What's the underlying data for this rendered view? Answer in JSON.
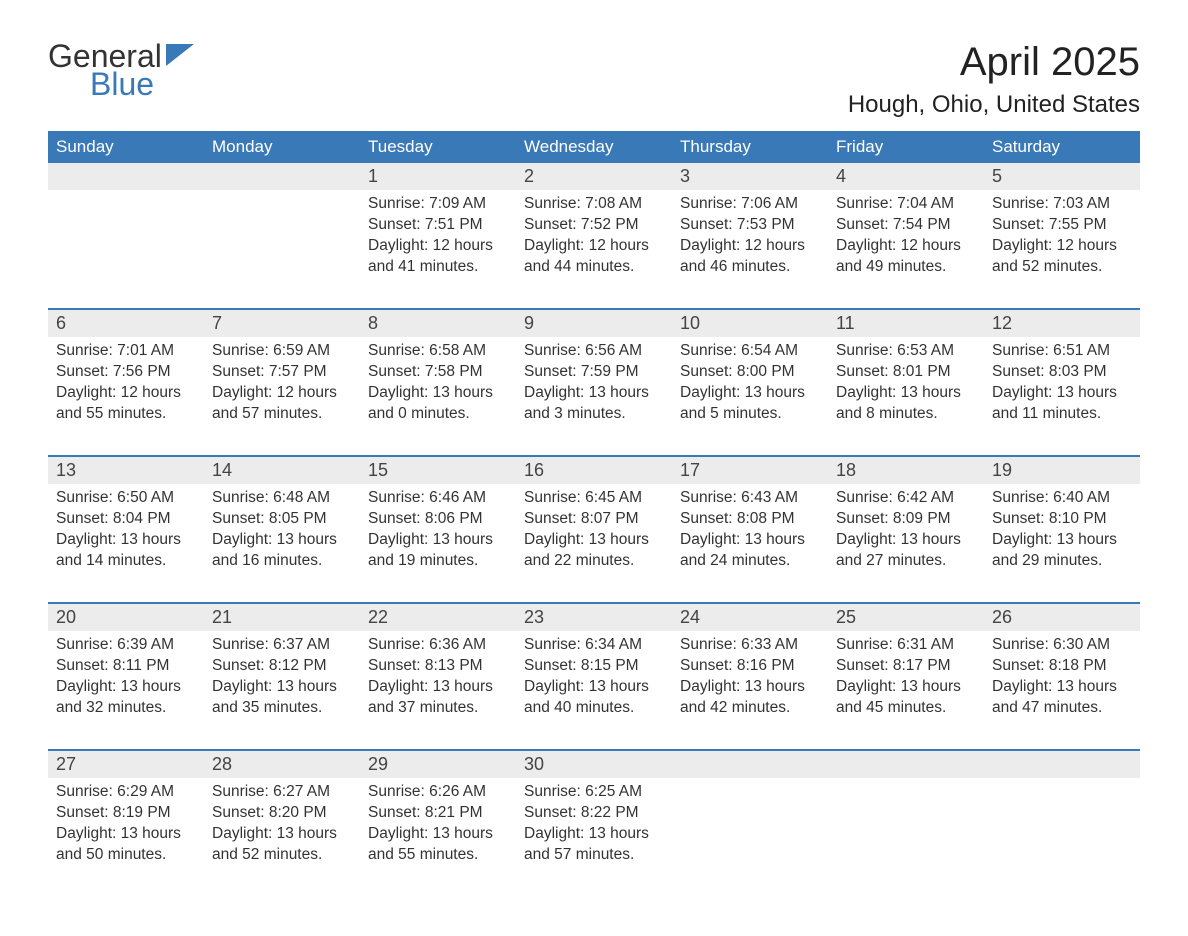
{
  "logo": {
    "general": "General",
    "blue": "Blue"
  },
  "title": "April 2025",
  "location": "Hough, Ohio, United States",
  "colors": {
    "header_bg": "#3a79b7",
    "header_text": "#ffffff",
    "daynum_bg": "#ececec",
    "week_border": "#3a79b7",
    "body_text": "#333333",
    "page_bg": "#ffffff"
  },
  "typography": {
    "title_fontsize": 40,
    "location_fontsize": 24,
    "dayhead_fontsize": 17,
    "daynum_fontsize": 18,
    "cell_fontsize": 15.5
  },
  "dayheads": [
    "Sunday",
    "Monday",
    "Tuesday",
    "Wednesday",
    "Thursday",
    "Friday",
    "Saturday"
  ],
  "labels": {
    "sunrise": "Sunrise:",
    "sunset": "Sunset:",
    "daylight": "Daylight:"
  },
  "weeks": [
    {
      "days": [
        null,
        null,
        {
          "n": "1",
          "sunrise": "7:09 AM",
          "sunset": "7:51 PM",
          "daylight": "12 hours and 41 minutes."
        },
        {
          "n": "2",
          "sunrise": "7:08 AM",
          "sunset": "7:52 PM",
          "daylight": "12 hours and 44 minutes."
        },
        {
          "n": "3",
          "sunrise": "7:06 AM",
          "sunset": "7:53 PM",
          "daylight": "12 hours and 46 minutes."
        },
        {
          "n": "4",
          "sunrise": "7:04 AM",
          "sunset": "7:54 PM",
          "daylight": "12 hours and 49 minutes."
        },
        {
          "n": "5",
          "sunrise": "7:03 AM",
          "sunset": "7:55 PM",
          "daylight": "12 hours and 52 minutes."
        }
      ]
    },
    {
      "days": [
        {
          "n": "6",
          "sunrise": "7:01 AM",
          "sunset": "7:56 PM",
          "daylight": "12 hours and 55 minutes."
        },
        {
          "n": "7",
          "sunrise": "6:59 AM",
          "sunset": "7:57 PM",
          "daylight": "12 hours and 57 minutes."
        },
        {
          "n": "8",
          "sunrise": "6:58 AM",
          "sunset": "7:58 PM",
          "daylight": "13 hours and 0 minutes."
        },
        {
          "n": "9",
          "sunrise": "6:56 AM",
          "sunset": "7:59 PM",
          "daylight": "13 hours and 3 minutes."
        },
        {
          "n": "10",
          "sunrise": "6:54 AM",
          "sunset": "8:00 PM",
          "daylight": "13 hours and 5 minutes."
        },
        {
          "n": "11",
          "sunrise": "6:53 AM",
          "sunset": "8:01 PM",
          "daylight": "13 hours and 8 minutes."
        },
        {
          "n": "12",
          "sunrise": "6:51 AM",
          "sunset": "8:03 PM",
          "daylight": "13 hours and 11 minutes."
        }
      ]
    },
    {
      "days": [
        {
          "n": "13",
          "sunrise": "6:50 AM",
          "sunset": "8:04 PM",
          "daylight": "13 hours and 14 minutes."
        },
        {
          "n": "14",
          "sunrise": "6:48 AM",
          "sunset": "8:05 PM",
          "daylight": "13 hours and 16 minutes."
        },
        {
          "n": "15",
          "sunrise": "6:46 AM",
          "sunset": "8:06 PM",
          "daylight": "13 hours and 19 minutes."
        },
        {
          "n": "16",
          "sunrise": "6:45 AM",
          "sunset": "8:07 PM",
          "daylight": "13 hours and 22 minutes."
        },
        {
          "n": "17",
          "sunrise": "6:43 AM",
          "sunset": "8:08 PM",
          "daylight": "13 hours and 24 minutes."
        },
        {
          "n": "18",
          "sunrise": "6:42 AM",
          "sunset": "8:09 PM",
          "daylight": "13 hours and 27 minutes."
        },
        {
          "n": "19",
          "sunrise": "6:40 AM",
          "sunset": "8:10 PM",
          "daylight": "13 hours and 29 minutes."
        }
      ]
    },
    {
      "days": [
        {
          "n": "20",
          "sunrise": "6:39 AM",
          "sunset": "8:11 PM",
          "daylight": "13 hours and 32 minutes."
        },
        {
          "n": "21",
          "sunrise": "6:37 AM",
          "sunset": "8:12 PM",
          "daylight": "13 hours and 35 minutes."
        },
        {
          "n": "22",
          "sunrise": "6:36 AM",
          "sunset": "8:13 PM",
          "daylight": "13 hours and 37 minutes."
        },
        {
          "n": "23",
          "sunrise": "6:34 AM",
          "sunset": "8:15 PM",
          "daylight": "13 hours and 40 minutes."
        },
        {
          "n": "24",
          "sunrise": "6:33 AM",
          "sunset": "8:16 PM",
          "daylight": "13 hours and 42 minutes."
        },
        {
          "n": "25",
          "sunrise": "6:31 AM",
          "sunset": "8:17 PM",
          "daylight": "13 hours and 45 minutes."
        },
        {
          "n": "26",
          "sunrise": "6:30 AM",
          "sunset": "8:18 PM",
          "daylight": "13 hours and 47 minutes."
        }
      ]
    },
    {
      "days": [
        {
          "n": "27",
          "sunrise": "6:29 AM",
          "sunset": "8:19 PM",
          "daylight": "13 hours and 50 minutes."
        },
        {
          "n": "28",
          "sunrise": "6:27 AM",
          "sunset": "8:20 PM",
          "daylight": "13 hours and 52 minutes."
        },
        {
          "n": "29",
          "sunrise": "6:26 AM",
          "sunset": "8:21 PM",
          "daylight": "13 hours and 55 minutes."
        },
        {
          "n": "30",
          "sunrise": "6:25 AM",
          "sunset": "8:22 PM",
          "daylight": "13 hours and 57 minutes."
        },
        null,
        null,
        null
      ]
    }
  ]
}
